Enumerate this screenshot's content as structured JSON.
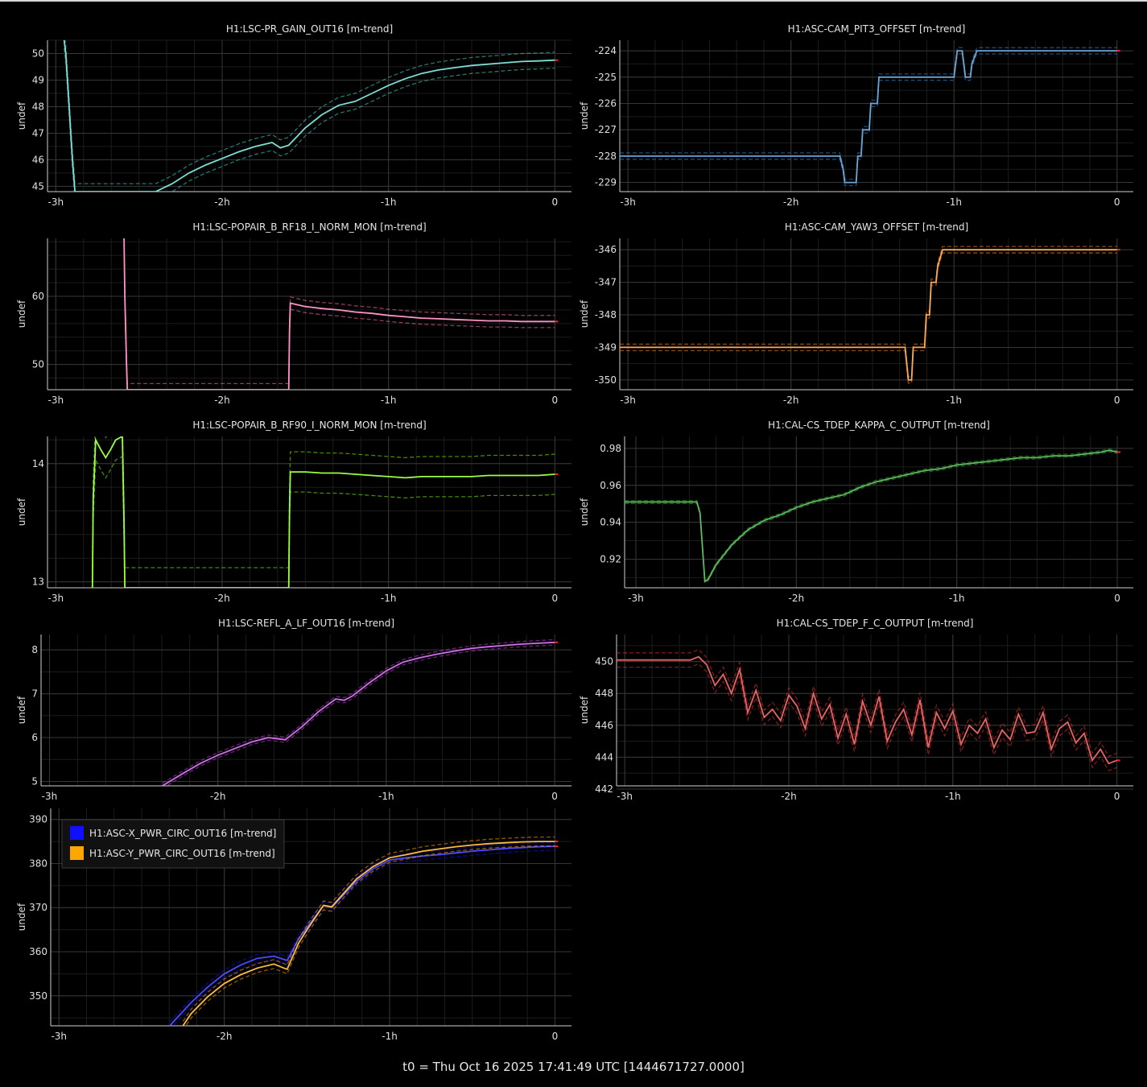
{
  "footer": "t0 = Thu Oct 16 2025 17:41:49 UTC [1444671727.0000]",
  "chart_data": [
    {
      "type": "line",
      "title": "H1:LSC-PR_GAIN_OUT16 [m-trend]",
      "ylabel": "undef",
      "x_ticks": [
        "-3h",
        "-2h",
        "-1h",
        "0"
      ],
      "y_ticks": [
        45,
        46,
        47,
        48,
        49,
        50
      ],
      "xlim": [
        -3.05,
        0.1
      ],
      "ylim": [
        44.8,
        50.5
      ],
      "series": [
        {
          "color": "#4fd1c5",
          "x": [
            -2.95,
            -2.94,
            -2.93,
            -2.92,
            -2.91,
            -2.9,
            -2.89,
            -2.885,
            -2.5,
            -2.4,
            -2.3,
            -2.2,
            -2.1,
            -2.0,
            -1.9,
            -1.8,
            -1.7,
            -1.65,
            -1.6,
            -1.5,
            -1.4,
            -1.3,
            -1.2,
            -1.1,
            -1.0,
            -0.9,
            -0.8,
            -0.7,
            -0.6,
            -0.5,
            -0.4,
            -0.3,
            -0.2,
            -0.1,
            0.0
          ],
          "y": [
            50.5,
            50.0,
            49.0,
            48.0,
            47.0,
            46.0,
            45.2,
            44.8,
            44.8,
            44.8,
            45.1,
            45.5,
            45.8,
            46.05,
            46.3,
            46.5,
            46.65,
            46.45,
            46.55,
            47.2,
            47.7,
            48.05,
            48.2,
            48.5,
            48.8,
            49.05,
            49.25,
            49.38,
            49.47,
            49.55,
            49.6,
            49.65,
            49.7,
            49.72,
            49.75
          ],
          "band": 0.3
        }
      ]
    },
    {
      "type": "line",
      "title": "H1:ASC-CAM_PIT3_OFFSET [m-trend]",
      "ylabel": "undef",
      "x_ticks": [
        "-3h",
        "-2h",
        "-1h",
        "0"
      ],
      "y_ticks": [
        -229,
        -228,
        -227,
        -226,
        -225,
        -224
      ],
      "xlim": [
        -3.05,
        0.1
      ],
      "ylim": [
        -229.35,
        -223.6
      ],
      "series": [
        {
          "color": "#3a86c8",
          "x": [
            -3.05,
            -1.7,
            -1.68,
            -1.67,
            -1.6,
            -1.59,
            -1.57,
            -1.56,
            -1.52,
            -1.51,
            -1.47,
            -1.46,
            -1.37,
            -1.36,
            -1.1,
            -1.09,
            -1.0,
            -0.99,
            -0.98,
            -0.95,
            -0.94,
            -0.93,
            -0.9,
            -0.89,
            -0.86,
            -0.85,
            0.0
          ],
          "y": [
            -228,
            -228,
            -228.5,
            -229,
            -229,
            -228,
            -228,
            -227,
            -227,
            -226,
            -226,
            -225,
            -225,
            -225,
            -225,
            -225,
            -225,
            -224.5,
            -224,
            -224,
            -224.5,
            -225,
            -225,
            -224.5,
            -224,
            -224,
            -224
          ],
          "band": 0.12
        }
      ]
    },
    {
      "type": "line",
      "title": "H1:LSC-POPAIR_B_RF18_I_NORM_MON [m-trend]",
      "ylabel": "undef",
      "x_ticks": [
        "-3h",
        "-2h",
        "-1h",
        "0"
      ],
      "y_ticks": [
        50,
        60
      ],
      "xlim": [
        -3.05,
        0.1
      ],
      "ylim": [
        46.3,
        68.5
      ],
      "series": [
        {
          "color": "#ff6eb4",
          "x": [
            -2.59,
            -2.585,
            -2.575,
            -2.57,
            -1.6,
            -1.595,
            -1.59,
            -1.5,
            -1.4,
            -1.3,
            -1.2,
            -1.1,
            -1.0,
            -0.9,
            -0.8,
            -0.7,
            -0.6,
            -0.5,
            -0.4,
            -0.3,
            -0.2,
            -0.1,
            0.0
          ],
          "y": [
            68.5,
            60.0,
            50.0,
            46.3,
            46.3,
            55.0,
            59.0,
            58.5,
            58.2,
            58.0,
            57.7,
            57.5,
            57.2,
            57.0,
            56.8,
            56.7,
            56.6,
            56.5,
            56.4,
            56.4,
            56.3,
            56.3,
            56.3
          ],
          "band": 0.9
        }
      ]
    },
    {
      "type": "line",
      "title": "H1:ASC-CAM_YAW3_OFFSET [m-trend]",
      "ylabel": "undef",
      "x_ticks": [
        "-3h",
        "-2h",
        "-1h",
        "0"
      ],
      "y_ticks": [
        -350,
        -349,
        -348,
        -347,
        -346
      ],
      "xlim": [
        -3.05,
        0.1
      ],
      "ylim": [
        -350.3,
        -345.65
      ],
      "series": [
        {
          "color": "#ff8c1a",
          "x": [
            -3.05,
            -1.3,
            -1.29,
            -1.28,
            -1.26,
            -1.25,
            -1.24,
            -1.23,
            -1.18,
            -1.17,
            -1.15,
            -1.14,
            -1.11,
            -1.1,
            -1.07,
            -1.06,
            0.0
          ],
          "y": [
            -349,
            -349,
            -349.5,
            -350,
            -350,
            -349,
            -349,
            -349,
            -349,
            -348,
            -348,
            -347,
            -347,
            -346.5,
            -346,
            -346,
            -346
          ],
          "band": 0.1
        }
      ]
    },
    {
      "type": "line",
      "title": "H1:LSC-POPAIR_B_RF90_I_NORM_MON [m-trend]",
      "ylabel": "undef",
      "x_ticks": [
        "-3h",
        "-2h",
        "-1h",
        "0"
      ],
      "y_ticks": [
        13,
        14
      ],
      "xlim": [
        -3.05,
        0.1
      ],
      "ylim": [
        12.95,
        14.23
      ],
      "series": [
        {
          "color": "#7cfc00",
          "x": [
            -2.78,
            -2.775,
            -2.76,
            -2.73,
            -2.7,
            -2.67,
            -2.64,
            -2.6,
            -2.59,
            -2.585,
            -1.6,
            -1.595,
            -1.59,
            -1.5,
            -1.4,
            -1.3,
            -1.2,
            -1.1,
            -1.0,
            -0.9,
            -0.8,
            -0.7,
            -0.6,
            -0.5,
            -0.4,
            -0.3,
            -0.2,
            -0.1,
            0.0
          ],
          "y": [
            12.95,
            13.7,
            14.2,
            14.12,
            14.05,
            14.12,
            14.2,
            14.23,
            13.5,
            12.95,
            12.95,
            13.6,
            13.93,
            13.93,
            13.92,
            13.92,
            13.91,
            13.9,
            13.89,
            13.88,
            13.89,
            13.89,
            13.89,
            13.89,
            13.9,
            13.9,
            13.9,
            13.9,
            13.91
          ],
          "band": 0.17
        }
      ]
    },
    {
      "type": "line",
      "title": "H1:CAL-CS_TDEP_KAPPA_C_OUTPUT [m-trend]",
      "ylabel": "undef",
      "x_ticks": [
        "-3h",
        "-2h",
        "-1h",
        "0"
      ],
      "y_ticks": [
        0.92,
        0.94,
        0.96,
        0.98
      ],
      "xlim": [
        -3.07,
        0.1
      ],
      "ylim": [
        0.9045,
        0.9865
      ],
      "series": [
        {
          "color": "#2ca02c",
          "x": [
            -3.07,
            -2.62,
            -2.6,
            -2.57,
            -2.55,
            -2.5,
            -2.4,
            -2.3,
            -2.2,
            -2.1,
            -2.0,
            -1.9,
            -1.8,
            -1.7,
            -1.6,
            -1.5,
            -1.4,
            -1.3,
            -1.2,
            -1.1,
            -1.0,
            -0.9,
            -0.8,
            -0.7,
            -0.6,
            -0.5,
            -0.4,
            -0.3,
            -0.2,
            -0.1,
            -0.05,
            0.0
          ],
          "y": [
            0.951,
            0.951,
            0.945,
            0.908,
            0.909,
            0.917,
            0.928,
            0.936,
            0.941,
            0.944,
            0.948,
            0.951,
            0.953,
            0.955,
            0.959,
            0.962,
            0.964,
            0.966,
            0.968,
            0.969,
            0.971,
            0.972,
            0.973,
            0.974,
            0.975,
            0.975,
            0.976,
            0.976,
            0.977,
            0.978,
            0.979,
            0.978
          ],
          "band": 0.0008
        }
      ]
    },
    {
      "type": "line",
      "title": "H1:LSC-REFL_A_LF_OUT16 [m-trend]",
      "ylabel": "undef",
      "x_ticks": [
        "-3h",
        "-2h",
        "-1h",
        "0"
      ],
      "y_ticks": [
        5,
        6,
        7,
        8
      ],
      "xlim": [
        -3.05,
        0.1
      ],
      "ylim": [
        4.9,
        8.35
      ],
      "series": [
        {
          "color": "#c040e0",
          "x": [
            -2.33,
            -2.2,
            -2.1,
            -2.0,
            -1.9,
            -1.8,
            -1.7,
            -1.6,
            -1.5,
            -1.4,
            -1.3,
            -1.25,
            -1.2,
            -1.1,
            -1.0,
            -0.9,
            -0.8,
            -0.7,
            -0.6,
            -0.5,
            -0.4,
            -0.3,
            -0.2,
            -0.1,
            0.0
          ],
          "y": [
            4.9,
            5.2,
            5.42,
            5.6,
            5.75,
            5.9,
            6.0,
            5.95,
            6.25,
            6.6,
            6.88,
            6.85,
            6.95,
            7.25,
            7.52,
            7.72,
            7.82,
            7.9,
            7.97,
            8.03,
            8.07,
            8.1,
            8.13,
            8.15,
            8.17
          ],
          "band": 0.06
        }
      ]
    },
    {
      "type": "line",
      "title": "H1:CAL-CS_TDEP_F_C_OUTPUT [m-trend]",
      "ylabel": "undef",
      "x_ticks": [
        "-3h",
        "-2h",
        "-1h",
        "0"
      ],
      "y_ticks": [
        442,
        444,
        446,
        448,
        450
      ],
      "xlim": [
        -3.05,
        0.1
      ],
      "ylim": [
        442.2,
        451.7
      ],
      "series": [
        {
          "color": "#e03030",
          "x": [
            -3.05,
            -2.6,
            -2.55,
            -2.5,
            -2.45,
            -2.4,
            -2.35,
            -2.3,
            -2.25,
            -2.2,
            -2.15,
            -2.1,
            -2.05,
            -2.0,
            -1.95,
            -1.9,
            -1.85,
            -1.8,
            -1.75,
            -1.7,
            -1.65,
            -1.6,
            -1.55,
            -1.5,
            -1.45,
            -1.4,
            -1.35,
            -1.3,
            -1.25,
            -1.2,
            -1.15,
            -1.1,
            -1.05,
            -1.0,
            -0.95,
            -0.9,
            -0.85,
            -0.8,
            -0.75,
            -0.7,
            -0.65,
            -0.6,
            -0.55,
            -0.5,
            -0.45,
            -0.4,
            -0.35,
            -0.3,
            -0.25,
            -0.2,
            -0.15,
            -0.1,
            -0.05,
            0.0
          ],
          "y": [
            450.1,
            450.1,
            450.3,
            449.8,
            448.5,
            449.2,
            448.0,
            449.5,
            446.8,
            448.2,
            446.5,
            447.0,
            446.3,
            447.9,
            447.2,
            445.8,
            448.0,
            446.4,
            447.3,
            445.2,
            446.7,
            444.8,
            447.5,
            446.0,
            447.8,
            445.0,
            446.2,
            447.0,
            445.4,
            447.6,
            444.6,
            446.8,
            445.8,
            446.9,
            444.8,
            446.0,
            445.5,
            446.4,
            444.6,
            445.7,
            445.1,
            446.7,
            445.5,
            445.6,
            446.8,
            444.5,
            445.8,
            446.2,
            444.9,
            445.5,
            443.8,
            444.5,
            443.6,
            443.8
          ],
          "band": 0.45
        }
      ]
    },
    {
      "type": "line",
      "title": "",
      "ylabel": "undef",
      "x_ticks": [
        "-3h",
        "-2h",
        "-1h",
        "0"
      ],
      "y_ticks": [
        350,
        360,
        370,
        380,
        390
      ],
      "xlim": [
        -3.05,
        0.1
      ],
      "ylim": [
        343.2,
        392.5
      ],
      "legend": "top-left",
      "series": [
        {
          "name": "H1:ASC-X_PWR_CIRC_OUT16 [m-trend]",
          "color": "#1010ff",
          "x": [
            -2.33,
            -2.2,
            -2.1,
            -2.0,
            -1.9,
            -1.8,
            -1.7,
            -1.62,
            -1.55,
            -1.5,
            -1.4,
            -1.35,
            -1.3,
            -1.2,
            -1.1,
            -1.0,
            -0.9,
            -0.8,
            -0.7,
            -0.6,
            -0.5,
            -0.4,
            -0.3,
            -0.2,
            -0.1,
            0.0
          ],
          "y": [
            343.2,
            348.5,
            352.0,
            355.0,
            357.0,
            358.5,
            359.0,
            358.0,
            363.0,
            365.5,
            370.5,
            370.0,
            372.0,
            376.0,
            378.8,
            380.8,
            381.3,
            381.7,
            382.0,
            382.4,
            382.8,
            383.1,
            383.4,
            383.6,
            383.8,
            383.9
          ],
          "band": 0.9
        },
        {
          "name": "H1:ASC-Y_PWR_CIRC_OUT16 [m-trend]",
          "color": "#ffa500",
          "x": [
            -2.25,
            -2.2,
            -2.1,
            -2.0,
            -1.9,
            -1.8,
            -1.7,
            -1.62,
            -1.55,
            -1.5,
            -1.4,
            -1.35,
            -1.3,
            -1.2,
            -1.1,
            -1.0,
            -0.9,
            -0.8,
            -0.7,
            -0.6,
            -0.5,
            -0.4,
            -0.3,
            -0.2,
            -0.1,
            0.0
          ],
          "y": [
            343.2,
            346.0,
            349.8,
            352.8,
            354.8,
            356.3,
            357.2,
            356.0,
            362.0,
            365.0,
            370.5,
            370.2,
            372.3,
            376.5,
            379.3,
            381.3,
            382.0,
            382.8,
            383.3,
            383.8,
            384.2,
            384.5,
            384.7,
            384.9,
            385.0,
            385.0
          ],
          "band": 1.0
        }
      ]
    }
  ]
}
